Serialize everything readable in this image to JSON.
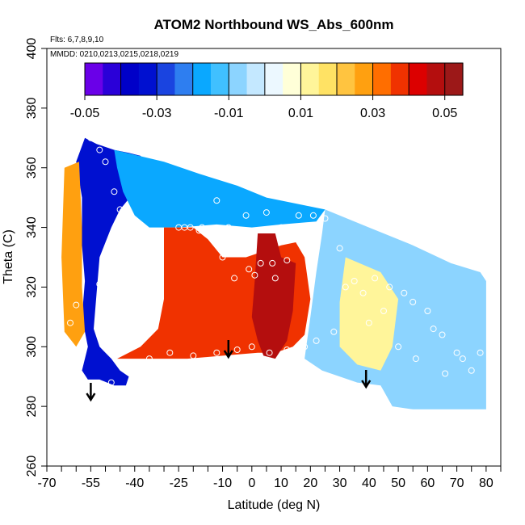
{
  "header": {
    "title": "ATOM2 Northbound WS_Abs_600nm",
    "flights": "Flts: 6,7,8,9,10",
    "dates": "MMDD: 0210,0213,0215,0218,0219"
  },
  "chart_data": {
    "type": "heatmap",
    "title": "ATOM2 Northbound WS_Abs_600nm",
    "xlabel": "Latitude (deg N)",
    "ylabel": "Theta (C)",
    "xlim": [
      -70,
      85
    ],
    "ylim": [
      260,
      400
    ],
    "x_tick_labels": [
      "-70",
      "-55",
      "-40",
      "-25",
      "-10",
      "0",
      "10",
      "20",
      "30",
      "40",
      "50",
      "60",
      "70",
      "80"
    ],
    "x_tick_values": [
      -70,
      -55,
      -40,
      -25,
      -10,
      0,
      10,
      20,
      30,
      40,
      50,
      60,
      70,
      80
    ],
    "x_minor_ticks": [
      -65,
      -60,
      -50,
      -45,
      -35,
      -30,
      -20,
      -15,
      -5,
      5,
      15,
      25,
      35,
      45,
      55,
      65,
      75,
      85
    ],
    "y_tick_labels": [
      "260",
      "280",
      "300",
      "320",
      "340",
      "360",
      "380",
      "400"
    ],
    "y_tick_values": [
      260,
      280,
      300,
      320,
      340,
      360,
      380,
      400
    ],
    "colorbar": {
      "range": [
        -0.05,
        0.055
      ],
      "tick_labels": [
        "-0.05",
        "-0.03",
        "-0.01",
        "0.01",
        "0.03",
        "0.05"
      ],
      "tick_values": [
        -0.05,
        -0.03,
        -0.01,
        0.01,
        0.03,
        0.05
      ],
      "colors": [
        "#6a00e8",
        "#2a00d8",
        "#0000c8",
        "#0010d0",
        "#1a44e0",
        "#2e7ef0",
        "#0aa8ff",
        "#40c0ff",
        "#8cd4ff",
        "#c4e8ff",
        "#ecf8ff",
        "#ffffd8",
        "#fff59a",
        "#ffe264",
        "#ffc440",
        "#ffa010",
        "#ff6e00",
        "#f03200",
        "#dc0000",
        "#b40e0e",
        "#9c1818"
      ],
      "divider_values": [
        -0.04,
        -0.03,
        -0.02,
        -0.01,
        0.0,
        0.01,
        0.02,
        0.03,
        0.04,
        0.05
      ]
    },
    "regions": [
      {
        "name": "southern-upper-blue",
        "value": -0.035,
        "polygon": [
          [
            -57,
            370
          ],
          [
            -53,
            368
          ],
          [
            -47,
            366
          ],
          [
            -42,
            365
          ],
          [
            -38,
            364
          ],
          [
            -36,
            360
          ],
          [
            -40,
            352
          ],
          [
            -45,
            346
          ],
          [
            -48,
            340
          ],
          [
            -52,
            330
          ],
          [
            -53,
            318
          ],
          [
            -54,
            306
          ],
          [
            -52,
            300
          ],
          [
            -48,
            296
          ],
          [
            -45,
            292
          ],
          [
            -42,
            290
          ],
          [
            -43,
            287
          ],
          [
            -47,
            287
          ],
          [
            -52,
            289
          ],
          [
            -56,
            289
          ],
          [
            -58,
            292
          ],
          [
            -56,
            300
          ],
          [
            -58,
            310
          ],
          [
            -57,
            322
          ],
          [
            -58,
            334
          ],
          [
            -58,
            350
          ],
          [
            -60,
            362
          ]
        ]
      },
      {
        "name": "upper-mid-blue",
        "value": -0.02,
        "polygon": [
          [
            -47,
            366
          ],
          [
            -30,
            362
          ],
          [
            -18,
            358
          ],
          [
            -5,
            354
          ],
          [
            5,
            350
          ],
          [
            15,
            348
          ],
          [
            25,
            346
          ],
          [
            22,
            342
          ],
          [
            10,
            341
          ],
          [
            0,
            340
          ],
          [
            -12,
            341
          ],
          [
            -25,
            340
          ],
          [
            -35,
            340
          ],
          [
            -40,
            344
          ],
          [
            -44,
            352
          ],
          [
            -46,
            360
          ]
        ]
      },
      {
        "name": "southern-orange-column",
        "value": 0.028,
        "polygon": [
          [
            -64,
            360
          ],
          [
            -59,
            362
          ],
          [
            -58,
            340
          ],
          [
            -58,
            320
          ],
          [
            -57,
            305
          ],
          [
            -60,
            300
          ],
          [
            -64,
            305
          ],
          [
            -65,
            330
          ]
        ]
      },
      {
        "name": "central-orange-block",
        "value": 0.035,
        "polygon": [
          [
            -30,
            340
          ],
          [
            -20,
            340
          ],
          [
            -15,
            336
          ],
          [
            -10,
            330
          ],
          [
            -2,
            330
          ],
          [
            4,
            332
          ],
          [
            10,
            334
          ],
          [
            15,
            335
          ],
          [
            18,
            330
          ],
          [
            20,
            316
          ],
          [
            18,
            304
          ],
          [
            14,
            300
          ],
          [
            8,
            298
          ],
          [
            2,
            298
          ],
          [
            -10,
            297
          ],
          [
            -22,
            296
          ],
          [
            -32,
            296
          ],
          [
            -40,
            296
          ],
          [
            -46,
            296
          ],
          [
            -38,
            300
          ],
          [
            -32,
            306
          ],
          [
            -30,
            316
          ],
          [
            -30,
            328
          ]
        ]
      },
      {
        "name": "central-red-core",
        "value": 0.048,
        "polygon": [
          [
            2,
            338
          ],
          [
            8,
            338
          ],
          [
            10,
            330
          ],
          [
            15,
            328
          ],
          [
            14,
            312
          ],
          [
            12,
            302
          ],
          [
            8,
            296
          ],
          [
            4,
            297
          ],
          [
            2,
            302
          ],
          [
            0,
            310
          ],
          [
            1,
            322
          ]
        ]
      },
      {
        "name": "northern-light-blue",
        "value": -0.006,
        "polygon": [
          [
            25,
            346
          ],
          [
            40,
            340
          ],
          [
            55,
            334
          ],
          [
            68,
            328
          ],
          [
            78,
            325
          ],
          [
            80,
            322
          ],
          [
            80,
            300
          ],
          [
            80,
            279
          ],
          [
            64,
            279
          ],
          [
            55,
            279
          ],
          [
            48,
            280
          ],
          [
            44,
            287
          ],
          [
            36,
            288
          ],
          [
            24,
            292
          ],
          [
            18,
            296
          ],
          [
            20,
            310
          ],
          [
            22,
            325
          ],
          [
            24,
            338
          ]
        ]
      },
      {
        "name": "northern-yellow-patch",
        "value": 0.012,
        "polygon": [
          [
            32,
            330
          ],
          [
            44,
            325
          ],
          [
            50,
            316
          ],
          [
            48,
            300
          ],
          [
            44,
            292
          ],
          [
            36,
            294
          ],
          [
            30,
            300
          ],
          [
            30,
            315
          ]
        ]
      }
    ],
    "observation_points": [
      [
        -55,
        370
      ],
      [
        -52,
        366
      ],
      [
        -50,
        362
      ],
      [
        -47,
        352
      ],
      [
        -45,
        346
      ],
      [
        -43,
        341
      ],
      [
        -41,
        339
      ],
      [
        -47,
        330
      ],
      [
        -45,
        331
      ],
      [
        -44,
        331
      ],
      [
        -52,
        321
      ],
      [
        -46,
        319
      ],
      [
        -48,
        314
      ],
      [
        -60,
        314
      ],
      [
        -62,
        308
      ],
      [
        -25,
        340
      ],
      [
        -21,
        340
      ],
      [
        -23,
        340
      ],
      [
        -18,
        339
      ],
      [
        -17,
        340
      ],
      [
        -12,
        349
      ],
      [
        -8,
        340
      ],
      [
        -10,
        330
      ],
      [
        -6,
        323
      ],
      [
        -1,
        326
      ],
      [
        3,
        328
      ],
      [
        1,
        324
      ],
      [
        7,
        328
      ],
      [
        8,
        323
      ],
      [
        12,
        329
      ],
      [
        10,
        340
      ],
      [
        16,
        344
      ],
      [
        21,
        344
      ],
      [
        25,
        343
      ],
      [
        30,
        333
      ],
      [
        32,
        320
      ],
      [
        35,
        322
      ],
      [
        38,
        318
      ],
      [
        42,
        323
      ],
      [
        45,
        312
      ],
      [
        47,
        320
      ],
      [
        52,
        318
      ],
      [
        55,
        315
      ],
      [
        60,
        312
      ],
      [
        62,
        306
      ],
      [
        65,
        304
      ],
      [
        70,
        298
      ],
      [
        72,
        296
      ],
      [
        75,
        292
      ],
      [
        78,
        298
      ],
      [
        66,
        291
      ],
      [
        56,
        296
      ],
      [
        50,
        300
      ],
      [
        40,
        308
      ],
      [
        28,
        305
      ],
      [
        22,
        302
      ],
      [
        18,
        300
      ],
      [
        12,
        299
      ],
      [
        6,
        298
      ],
      [
        0,
        300
      ],
      [
        -5,
        299
      ],
      [
        -12,
        298
      ],
      [
        -20,
        297
      ],
      [
        -28,
        298
      ],
      [
        -35,
        296
      ],
      [
        -42,
        286
      ],
      [
        -48,
        288
      ],
      [
        -56,
        283
      ],
      [
        -62,
        300
      ],
      [
        5,
        345
      ],
      [
        -2,
        344
      ]
    ],
    "arrows": [
      -55,
      -8,
      39
    ]
  }
}
